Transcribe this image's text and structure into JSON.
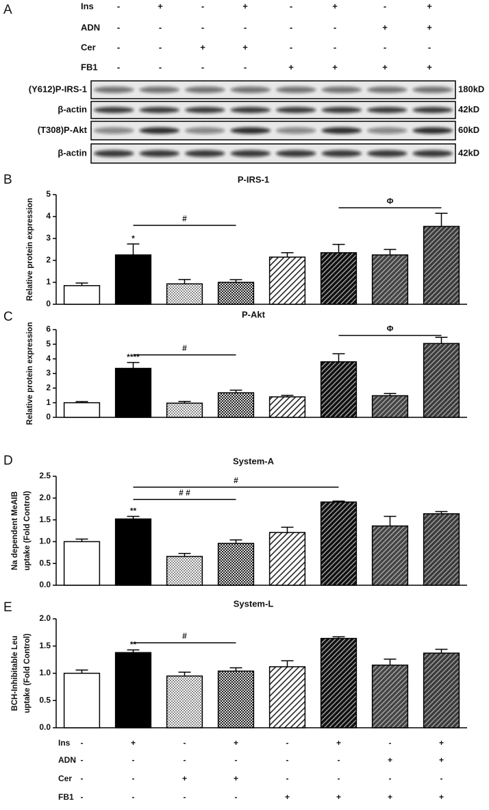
{
  "panels": [
    "A",
    "B",
    "C",
    "D",
    "E"
  ],
  "top_table": {
    "rows": [
      {
        "name": "Ins",
        "signs": [
          "-",
          "+",
          "-",
          "+",
          "-",
          "+",
          "-",
          "+"
        ]
      },
      {
        "name": "ADN",
        "signs": [
          "-",
          "-",
          "-",
          "-",
          "-",
          "-",
          "+",
          "+"
        ]
      },
      {
        "name": "Cer",
        "signs": [
          "-",
          "-",
          "+",
          "+",
          "-",
          "-",
          "-",
          "-"
        ]
      },
      {
        "name": "FB1",
        "signs": [
          "-",
          "-",
          "-",
          "-",
          "+",
          "+",
          "+",
          "+"
        ]
      }
    ]
  },
  "blot": {
    "rows": [
      {
        "label": "(Y612)P-IRS-1",
        "size": "180kD"
      },
      {
        "label": "β-actin",
        "size": "42kD"
      },
      {
        "label": "(T308)P-Akt",
        "size": "60kD"
      },
      {
        "label": "β-actin",
        "size": "42kD"
      }
    ]
  },
  "chart_data": [
    {
      "type": "bar",
      "title": "P-IRS-1",
      "ylabel": "Relative protein expression",
      "categories": [
        null,
        null,
        null,
        null,
        null,
        null,
        null,
        null
      ],
      "values": [
        0.85,
        2.25,
        0.93,
        1.0,
        2.15,
        2.35,
        2.25,
        3.55
      ],
      "errors": [
        0.12,
        0.5,
        0.2,
        0.12,
        0.2,
        0.38,
        0.25,
        0.6
      ],
      "fills": [
        "white",
        "black",
        "dots",
        "checker",
        "hatch-light",
        "hatch-dark",
        "hatch-mid",
        "hatch-mid2"
      ],
      "significance": [
        null,
        "*",
        null,
        null,
        null,
        null,
        null,
        null
      ],
      "comparisons": [
        {
          "label": "#",
          "from": 1,
          "to": 3,
          "y": 3.6
        },
        {
          "label": "Φ",
          "from": 5,
          "to": 7,
          "y": 4.4
        }
      ],
      "ylim": [
        0,
        5
      ],
      "yticks": [
        0,
        1,
        2,
        3,
        4,
        5
      ]
    },
    {
      "type": "bar",
      "title": "P-Akt",
      "ylabel": "Relative protein expression",
      "categories": [
        null,
        null,
        null,
        null,
        null,
        null,
        null,
        null
      ],
      "values": [
        1.0,
        3.35,
        0.97,
        1.68,
        1.4,
        3.8,
        1.48,
        5.05
      ],
      "errors": [
        0.08,
        0.4,
        0.12,
        0.18,
        0.1,
        0.55,
        0.15,
        0.42
      ],
      "fills": [
        "white",
        "black",
        "dots",
        "checker",
        "hatch-light",
        "hatch-dark",
        "hatch-mid",
        "hatch-mid2"
      ],
      "significance": [
        null,
        "****",
        null,
        null,
        null,
        null,
        null,
        null
      ],
      "comparisons": [
        {
          "label": "#",
          "from": 1,
          "to": 3,
          "y": 4.27
        },
        {
          "label": "Φ",
          "from": 5,
          "to": 7,
          "y": 5.6
        }
      ],
      "ylim": [
        0,
        6
      ],
      "yticks": [
        0,
        1,
        2,
        3,
        4,
        5,
        6
      ]
    },
    {
      "type": "bar",
      "title": "System-A",
      "ylabel": [
        "Na dependent MeAIB",
        "uptake (Fold Control)"
      ],
      "categories": [
        null,
        null,
        null,
        null,
        null,
        null,
        null,
        null
      ],
      "values": [
        1.0,
        1.52,
        0.66,
        0.96,
        1.21,
        1.91,
        1.36,
        1.64
      ],
      "errors": [
        0.06,
        0.06,
        0.07,
        0.08,
        0.12,
        0.02,
        0.22,
        0.05
      ],
      "fills": [
        "white",
        "black",
        "dots",
        "checker",
        "hatch-light",
        "hatch-dark",
        "hatch-mid",
        "hatch-mid2"
      ],
      "significance": [
        null,
        "**",
        null,
        null,
        null,
        null,
        null,
        null
      ],
      "comparisons": [
        {
          "label": "# #",
          "from": 1,
          "to": 3,
          "y": 1.97
        },
        {
          "label": "#",
          "from": 1,
          "to": 5,
          "y": 2.25
        }
      ],
      "ylim": [
        0,
        2.5
      ],
      "yticks": [
        {
          "value": 0,
          "label": "0.0"
        },
        0.5,
        {
          "value": 1,
          "label": "1.0"
        },
        1.5,
        {
          "value": 2,
          "label": "2.0"
        },
        2.5
      ]
    },
    {
      "type": "bar",
      "title": "System-L",
      "ylabel": [
        "BCH-Inhibitable Leu",
        "uptake (Fold Control)"
      ],
      "categories": [
        null,
        null,
        null,
        null,
        null,
        null,
        null,
        null
      ],
      "values": [
        1.0,
        1.38,
        0.95,
        1.04,
        1.12,
        1.64,
        1.15,
        1.37
      ],
      "errors": [
        0.06,
        0.05,
        0.07,
        0.06,
        0.11,
        0.03,
        0.11,
        0.07
      ],
      "fills": [
        "white",
        "black",
        "dots",
        "checker",
        "hatch-light",
        "hatch-dark",
        "hatch-mid",
        "hatch-mid2"
      ],
      "significance": [
        null,
        "**",
        null,
        null,
        null,
        null,
        null,
        null
      ],
      "comparisons": [
        {
          "label": "#",
          "from": 1,
          "to": 3,
          "y": 1.56
        }
      ],
      "ylim": [
        0,
        2
      ],
      "yticks": [
        {
          "value": 0,
          "label": "0.0"
        },
        0.5,
        {
          "value": 1,
          "label": "1.0"
        },
        1.5,
        {
          "value": 2,
          "label": "2.0"
        }
      ]
    }
  ],
  "bottom_table": {
    "rows": [
      {
        "name": "Ins",
        "signs": [
          "-",
          "+",
          "-",
          "+",
          "-",
          "+",
          "-",
          "+"
        ]
      },
      {
        "name": "ADN",
        "signs": [
          "-",
          "-",
          "-",
          "-",
          "-",
          "-",
          "+",
          "+"
        ]
      },
      {
        "name": "Cer",
        "signs": [
          "-",
          "-",
          "+",
          "+",
          "-",
          "-",
          "-",
          "-"
        ]
      },
      {
        "name": "FB1",
        "signs": [
          "-",
          "-",
          "-",
          "-",
          "+",
          "+",
          "+",
          "+"
        ]
      }
    ]
  }
}
